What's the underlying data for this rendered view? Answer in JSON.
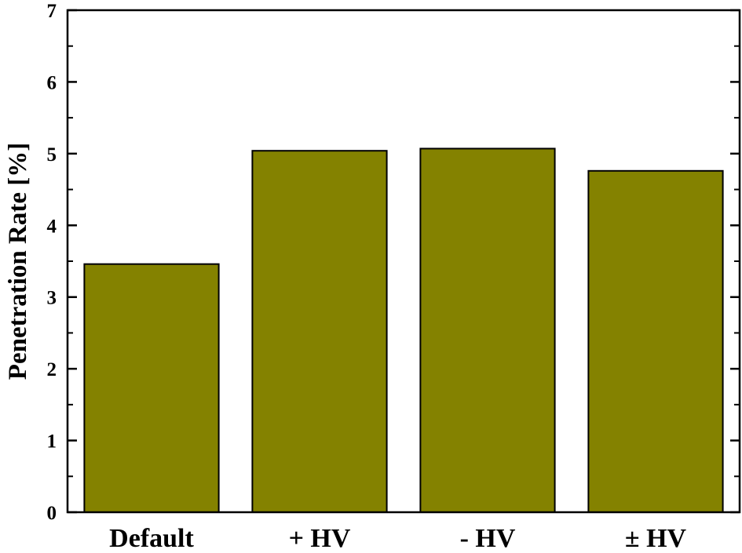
{
  "chart_data": {
    "type": "bar",
    "categories": [
      "Default",
      "+ HV",
      "- HV",
      "± HV"
    ],
    "values": [
      3.46,
      5.04,
      5.07,
      4.76
    ],
    "xlabel": "",
    "ylabel": "Penetration Rate [%]",
    "ylim": [
      0,
      7
    ],
    "yticks": [
      "0",
      "1",
      "2",
      "3",
      "4",
      "5",
      "6",
      "7"
    ],
    "grid": false,
    "bar_color": "#848200",
    "edge_color": "#000000"
  }
}
